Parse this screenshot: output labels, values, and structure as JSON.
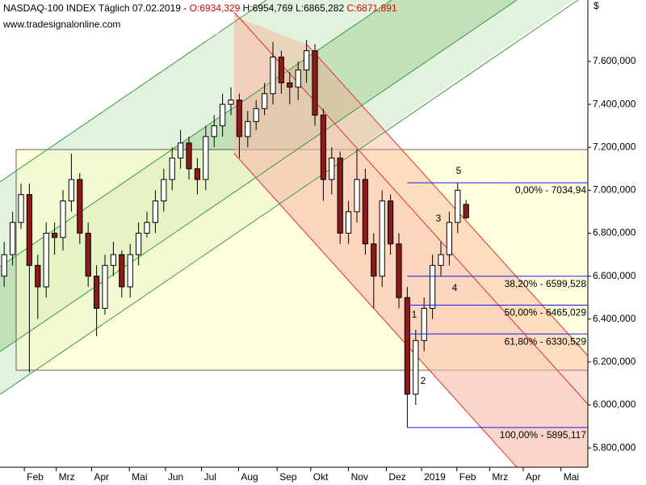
{
  "chart_data": {
    "type": "candlestick",
    "title": "NASDAQ-100 INDEX Täglich",
    "date": "07.02.2019 -",
    "quote": {
      "open": "O:6934,329",
      "high": "H:6954,769",
      "low": "L:6865,282",
      "close": "C:6871,891"
    },
    "source": "www.tradesignalonline.com",
    "currency": "$",
    "x": [
      0,
      1,
      2,
      3,
      4,
      5,
      6,
      7,
      8,
      9,
      10,
      11,
      12,
      13,
      14,
      15,
      16,
      17,
      18,
      19,
      20,
      21,
      22,
      23,
      24,
      25,
      26,
      27,
      28,
      29,
      30,
      31,
      32,
      33,
      34,
      35,
      36,
      37,
      38,
      39,
      40,
      41,
      42,
      43,
      44,
      45,
      46,
      47,
      48,
      49,
      50,
      51,
      52,
      53,
      54,
      55
    ],
    "open": [
      6600,
      6700,
      6850,
      6980,
      6650,
      6550,
      6800,
      6780,
      6950,
      7050,
      6800,
      6600,
      6450,
      6650,
      6700,
      6550,
      6700,
      6800,
      6850,
      6950,
      7050,
      7150,
      7220,
      7100,
      7050,
      7250,
      7300,
      7400,
      7420,
      7250,
      7320,
      7380,
      7450,
      7620,
      7500,
      7480,
      7560,
      7650,
      7350,
      7050,
      7150,
      6800,
      6900,
      7050,
      6750,
      6600,
      6950,
      6750,
      6500,
      6050,
      6300,
      6450,
      6650,
      6700,
      6850,
      6934
    ],
    "high": [
      6760,
      6900,
      7030,
      7030,
      6700,
      6850,
      6850,
      7000,
      7170,
      7080,
      6850,
      6650,
      6700,
      6760,
      6720,
      6750,
      6850,
      6900,
      7000,
      7100,
      7200,
      7280,
      7250,
      7150,
      7300,
      7350,
      7450,
      7480,
      7450,
      7370,
      7420,
      7500,
      7690,
      7650,
      7550,
      7600,
      7700,
      7680,
      7380,
      7200,
      7180,
      6950,
      7190,
      7100,
      6800,
      7000,
      6980,
      6800,
      6550,
      6350,
      6500,
      6700,
      6760,
      6900,
      7035,
      6955
    ],
    "low": [
      6550,
      6650,
      6820,
      6150,
      6400,
      6500,
      6700,
      6720,
      6900,
      6750,
      6550,
      6320,
      6420,
      6600,
      6500,
      6500,
      6650,
      6780,
      6800,
      6900,
      7000,
      7100,
      7050,
      6980,
      7000,
      7200,
      7250,
      7350,
      7150,
      7200,
      7280,
      7350,
      7400,
      7450,
      7400,
      7420,
      7500,
      7300,
      6950,
      6980,
      6750,
      6750,
      6850,
      6700,
      6450,
      6550,
      6700,
      6450,
      5895,
      6000,
      6250,
      6400,
      6600,
      6650,
      6800,
      6865
    ],
    "close": [
      6700,
      6850,
      6980,
      6650,
      6550,
      6800,
      6780,
      6950,
      7050,
      6800,
      6600,
      6450,
      6650,
      6700,
      6550,
      6700,
      6800,
      6850,
      6950,
      7050,
      7150,
      7220,
      7100,
      7050,
      7250,
      7300,
      7400,
      7420,
      7250,
      7320,
      7380,
      7450,
      7620,
      7500,
      7480,
      7560,
      7650,
      7350,
      7050,
      7150,
      6800,
      6900,
      7050,
      6750,
      6600,
      6950,
      6750,
      6500,
      6050,
      6300,
      6450,
      6650,
      6700,
      6850,
      7000,
      6872
    ],
    "up_color": "#ffffff",
    "down_color": "#8b1a1a",
    "xlim": [
      -0.5,
      69.5
    ],
    "xticks": [
      {
        "value": 2.4,
        "label": "Feb"
      },
      {
        "value": 6.2,
        "label": "Mrz"
      },
      {
        "value": 10.4,
        "label": "Apr"
      },
      {
        "value": 14.9,
        "label": "Mai"
      },
      {
        "value": 19.2,
        "label": "Jun"
      },
      {
        "value": 23.5,
        "label": "Jul"
      },
      {
        "value": 27.9,
        "label": "Aug"
      },
      {
        "value": 32.5,
        "label": "Sep"
      },
      {
        "value": 36.5,
        "label": "Okt"
      },
      {
        "value": 41.0,
        "label": "Nov"
      },
      {
        "value": 45.5,
        "label": "Dez"
      },
      {
        "value": 49.7,
        "label": "2019"
      },
      {
        "value": 53.9,
        "label": "Feb"
      },
      {
        "value": 57.8,
        "label": "Mrz"
      },
      {
        "value": 61.8,
        "label": "Apr"
      },
      {
        "value": 66.3,
        "label": "Mai"
      }
    ],
    "ylim": [
      5710,
      7886
    ],
    "yticks": [
      {
        "value": 5800,
        "label": "5.800,000"
      },
      {
        "value": 6000,
        "label": "6.000,000"
      },
      {
        "value": 6200,
        "label": "6.200,000"
      },
      {
        "value": 6400,
        "label": "6.400,000"
      },
      {
        "value": 6600,
        "label": "6.600,000"
      },
      {
        "value": 6800,
        "label": "6.800,000"
      },
      {
        "value": 7000,
        "label": "7.000,000"
      },
      {
        "value": 7200,
        "label": "7.200,000"
      },
      {
        "value": 7400,
        "label": "7.400,000"
      },
      {
        "value": 7600,
        "label": "7.600,000"
      }
    ],
    "fib_levels": [
      {
        "value": 7034.94,
        "label": "0,00% - 7034,94"
      },
      {
        "value": 6599.528,
        "label": "38,20% - 6599,528"
      },
      {
        "value": 6465.029,
        "label": "50,00% - 6465,029"
      },
      {
        "value": 6330.529,
        "label": "61,80% - 6330,529"
      },
      {
        "value": 5895.117,
        "label": "100,00% - 5895,117"
      }
    ],
    "fib_color": "#1a1aff",
    "waves": [
      "5",
      "3",
      "4",
      "1",
      "2"
    ]
  }
}
